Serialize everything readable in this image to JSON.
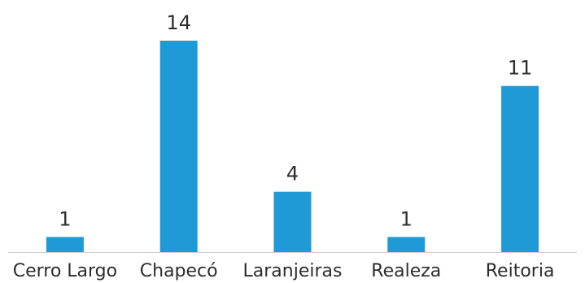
{
  "chart_data": {
    "type": "bar",
    "categories": [
      "Cerro Largo",
      "Chapecó",
      "Laranjeiras",
      "Realeza",
      "Reitoria"
    ],
    "values": [
      1,
      14,
      4,
      1,
      11
    ],
    "title": "",
    "xlabel": "",
    "ylabel": "",
    "ylim": [
      0,
      14
    ],
    "grid": false,
    "legend": "none",
    "data_labels": true,
    "bar_color": "#1f9ad6",
    "axis_color": "#d0d0d0"
  }
}
